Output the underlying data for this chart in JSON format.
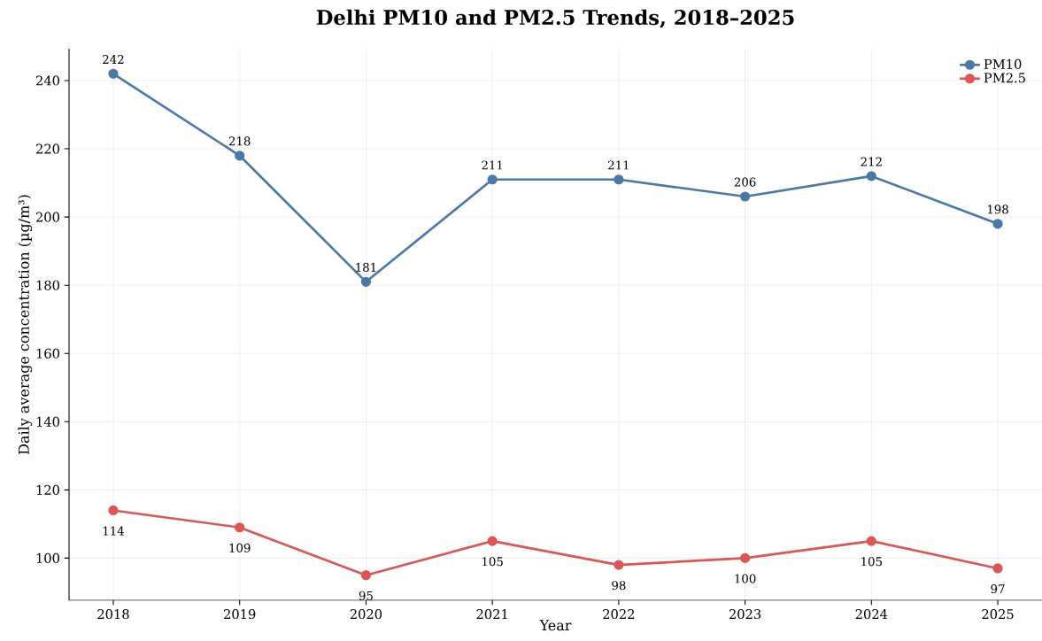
{
  "chart_data": {
    "type": "line",
    "title": "Delhi PM10 and PM2.5 Trends, 2018–2025",
    "xlabel": "Year",
    "ylabel": "Daily average concentration (µg/m³)",
    "x": [
      2018,
      2019,
      2020,
      2021,
      2022,
      2023,
      2024,
      2025
    ],
    "series": [
      {
        "name": "PM10",
        "color": "#4a78a8",
        "values": [
          242,
          218,
          181,
          211,
          211,
          206,
          212,
          198
        ]
      },
      {
        "name": "PM2.5",
        "color": "#dd5555",
        "values": [
          114,
          109,
          95,
          105,
          98,
          100,
          105,
          97
        ]
      }
    ],
    "xlim": [
      2017.65,
      2025.35
    ],
    "ylim": [
      87.65,
      249.35
    ],
    "xticks": [
      2018,
      2019,
      2020,
      2021,
      2022,
      2023,
      2024,
      2025
    ],
    "yticks": [
      100,
      120,
      140,
      160,
      180,
      200,
      220,
      240
    ],
    "grid": true,
    "legend": "top right",
    "marker": "circle",
    "line_style": "solid",
    "data_labels": true
  }
}
